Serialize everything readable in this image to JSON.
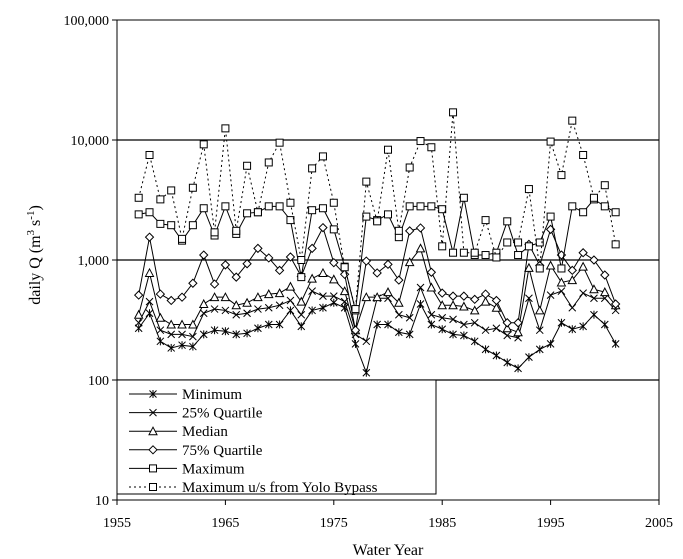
{
  "chart_data": {
    "type": "line",
    "xlabel": "Water Year",
    "ylabel": "daily Q (m",
    "ylabel_sup1": "3",
    "ylabel_mid": " s",
    "ylabel_sup2": "-1",
    "ylabel_end": ")",
    "xlim": [
      1955,
      2005
    ],
    "ylim": [
      10,
      100000
    ],
    "yscale": "log",
    "grid": "major y gridlines at 100, 1,000, 10,000",
    "legend_position": "bottom-left",
    "x_ticks": [
      {
        "value": 1955,
        "label": "1955"
      },
      {
        "value": 1965,
        "label": "1965"
      },
      {
        "value": 1975,
        "label": "1975"
      },
      {
        "value": 1985,
        "label": "1985"
      },
      {
        "value": 1995,
        "label": "1995"
      },
      {
        "value": 2005,
        "label": "2005"
      }
    ],
    "y_ticks": [
      {
        "value": 10,
        "label": "10"
      },
      {
        "value": 100,
        "label": "100"
      },
      {
        "value": 1000,
        "label": "1,000"
      },
      {
        "value": 10000,
        "label": "10,000"
      },
      {
        "value": 100000,
        "label": "100,000"
      }
    ],
    "x": [
      1957,
      1958,
      1959,
      1960,
      1961,
      1962,
      1963,
      1964,
      1965,
      1966,
      1967,
      1968,
      1969,
      1970,
      1971,
      1972,
      1973,
      1974,
      1975,
      1976,
      1977,
      1978,
      1979,
      1980,
      1981,
      1982,
      1983,
      1984,
      1985,
      1986,
      1987,
      1988,
      1989,
      1990,
      1991,
      1992,
      1993,
      1994,
      1995,
      1996,
      1997,
      1998,
      1999,
      2000,
      2001
    ],
    "series": [
      {
        "name": "Minimum",
        "marker": "asterisk",
        "dashed": false,
        "values": [
          270,
          360,
          210,
          185,
          195,
          190,
          240,
          260,
          255,
          240,
          245,
          270,
          290,
          290,
          380,
          280,
          380,
          400,
          440,
          400,
          200,
          115,
          290,
          290,
          250,
          240,
          430,
          290,
          265,
          240,
          235,
          210,
          180,
          160,
          140,
          125,
          155,
          180,
          200,
          300,
          265,
          280,
          350,
          290,
          200
        ]
      },
      {
        "name": "25% Quartile",
        "marker": "x",
        "dashed": false,
        "values": [
          300,
          450,
          260,
          240,
          240,
          230,
          360,
          390,
          380,
          350,
          360,
          390,
          400,
          420,
          460,
          350,
          550,
          500,
          500,
          450,
          240,
          210,
          480,
          480,
          350,
          330,
          590,
          350,
          330,
          320,
          290,
          300,
          260,
          270,
          235,
          225,
          480,
          260,
          510,
          550,
          400,
          530,
          480,
          480,
          380
        ]
      },
      {
        "name": "Median",
        "marker": "triangle",
        "dashed": false,
        "values": [
          350,
          780,
          330,
          290,
          290,
          290,
          430,
          490,
          490,
          420,
          440,
          490,
          520,
          530,
          600,
          450,
          700,
          780,
          690,
          550,
          260,
          490,
          490,
          540,
          440,
          960,
          1250,
          590,
          420,
          420,
          410,
          380,
          450,
          400,
          270,
          250,
          860,
          380,
          900,
          650,
          680,
          880,
          570,
          540,
          420
        ]
      },
      {
        "name": "75% Quartile",
        "marker": "diamond",
        "dashed": false,
        "values": [
          510,
          1550,
          520,
          460,
          490,
          640,
          1100,
          630,
          910,
          720,
          930,
          1250,
          1040,
          820,
          1060,
          730,
          1250,
          1860,
          950,
          760,
          260,
          980,
          780,
          920,
          680,
          1750,
          1850,
          790,
          530,
          500,
          500,
          470,
          520,
          460,
          300,
          300,
          1350,
          900,
          1800,
          1100,
          820,
          1150,
          1000,
          750,
          430
        ]
      },
      {
        "name": "Maximum",
        "marker": "square",
        "dashed": false,
        "values": [
          2400,
          2500,
          2000,
          1950,
          1450,
          1950,
          2700,
          1600,
          2800,
          1650,
          2450,
          2500,
          2800,
          2800,
          2150,
          720,
          2600,
          2700,
          1800,
          880,
          380,
          2300,
          2150,
          2400,
          1550,
          2800,
          2800,
          2800,
          2650,
          1150,
          3300,
          1100,
          1100,
          1150,
          2100,
          1100,
          1300,
          1400,
          2300,
          850,
          2800,
          2500,
          3200,
          2800,
          2500
        ]
      },
      {
        "name": "Maximum u/s from Yolo Bypass",
        "marker": "square-open",
        "dashed": true,
        "values": [
          3300,
          7500,
          3200,
          3800,
          1500,
          4000,
          9200,
          1700,
          12500,
          1750,
          6100,
          2500,
          6500,
          9500,
          3000,
          1000,
          5800,
          7300,
          3000,
          870,
          390,
          4500,
          2100,
          8300,
          1750,
          5900,
          9800,
          8700,
          1300,
          17000,
          1150,
          1150,
          2150,
          1050,
          1400,
          1400,
          3900,
          850,
          9700,
          5100,
          14500,
          7500,
          3300,
          4200,
          1350
        ]
      }
    ]
  }
}
